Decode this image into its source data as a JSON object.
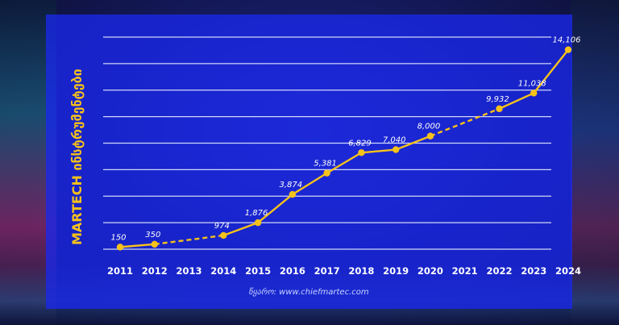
{
  "colors": {
    "line": "#f7c21a",
    "marker": "#f7c21a",
    "panel": "#1928eb",
    "grid": "#ebf0ff",
    "label": "#ffffff"
  },
  "source_note": "წყარო: www.chiefmartec.com",
  "chart_data": {
    "type": "line",
    "title": "",
    "ylabel": "MARTECH ინსტრუმენტები",
    "xlabel": "",
    "ylim": [
      0,
      15000
    ],
    "grid": "horizontal",
    "x_categories": [
      "2011",
      "2012",
      "2013",
      "2014",
      "2015",
      "2016",
      "2017",
      "2018",
      "2019",
      "2020",
      "2021",
      "2022",
      "2023",
      "2024"
    ],
    "points": [
      {
        "x": "2011",
        "y": 150,
        "label": "150"
      },
      {
        "x": "2012",
        "y": 350,
        "label": "350"
      },
      {
        "x": "2014",
        "y": 974,
        "label": "974"
      },
      {
        "x": "2015",
        "y": 1876,
        "label": "1,876"
      },
      {
        "x": "2016",
        "y": 3874,
        "label": "3,874"
      },
      {
        "x": "2017",
        "y": 5381,
        "label": "5,381"
      },
      {
        "x": "2018",
        "y": 6829,
        "label": "6,829"
      },
      {
        "x": "2019",
        "y": 7040,
        "label": "7,040"
      },
      {
        "x": "2020",
        "y": 8000,
        "label": "8,000"
      },
      {
        "x": "2022",
        "y": 9932,
        "label": "9,932"
      },
      {
        "x": "2023",
        "y": 11038,
        "label": "11,038"
      },
      {
        "x": "2024",
        "y": 14106,
        "label": "14,106"
      }
    ],
    "dashed_segments": [
      [
        "2012",
        "2014"
      ],
      [
        "2020",
        "2022"
      ]
    ]
  }
}
